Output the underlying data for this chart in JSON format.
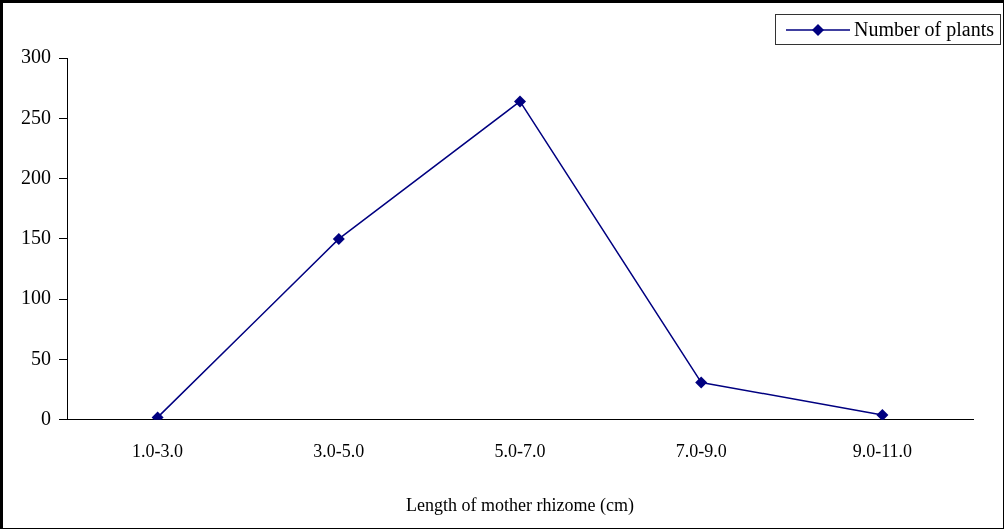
{
  "chart_data": {
    "type": "line",
    "xlabel": "Length of mother rhizome (cm)",
    "categories": [
      "1.0-3.0",
      "3.0-5.0",
      "5.0-7.0",
      "7.0-9.0",
      "9.0-11.0"
    ],
    "series": [
      {
        "name": "Number of plants",
        "color": "#000080",
        "values": [
          2,
          150,
          264,
          31,
          4
        ]
      }
    ],
    "ylim": [
      0,
      300
    ],
    "yticks": [
      0,
      50,
      100,
      150,
      200,
      250,
      300
    ],
    "grid": false,
    "legend": "top right",
    "marker": "diamond",
    "line_style": "solid"
  }
}
